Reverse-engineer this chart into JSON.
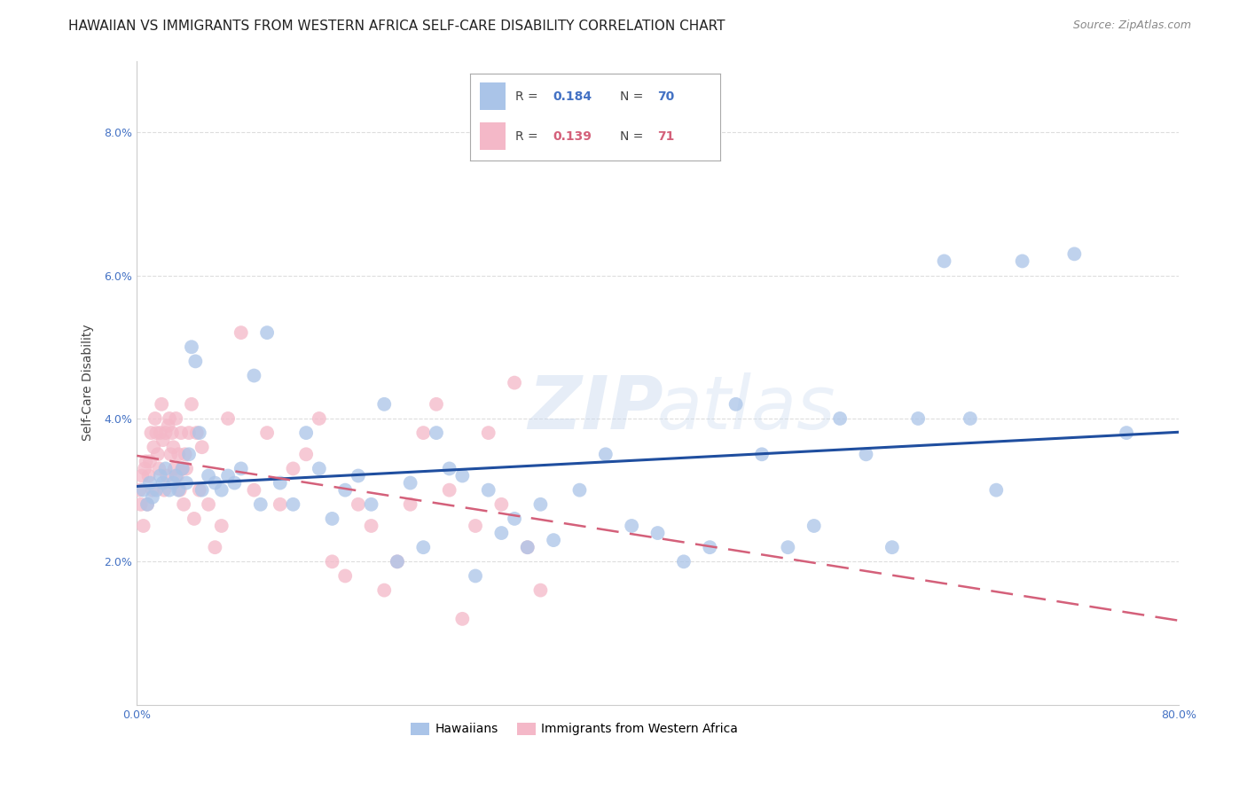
{
  "title": "HAWAIIAN VS IMMIGRANTS FROM WESTERN AFRICA SELF-CARE DISABILITY CORRELATION CHART",
  "source": "Source: ZipAtlas.com",
  "ylabel": "Self-Care Disability",
  "x_min": 0.0,
  "x_max": 0.8,
  "y_min": 0.0,
  "y_max": 0.09,
  "x_ticks": [
    0.0,
    0.1,
    0.2,
    0.3,
    0.4,
    0.5,
    0.6,
    0.7,
    0.8
  ],
  "x_tick_labels": [
    "0.0%",
    "",
    "",
    "",
    "",
    "",
    "",
    "",
    "80.0%"
  ],
  "y_ticks": [
    0.02,
    0.04,
    0.06,
    0.08
  ],
  "y_tick_labels": [
    "2.0%",
    "4.0%",
    "6.0%",
    "8.0%"
  ],
  "series1_color": "#aac4e8",
  "series1_edge": "#aac4e8",
  "series1_line_color": "#1f4e9f",
  "series2_color": "#f4b8c8",
  "series2_edge": "#f4b8c8",
  "series2_line_color": "#d4607a",
  "legend_box_color": "#aac4e8",
  "legend_box_color2": "#f4b8c8",
  "legend_r1": "0.184",
  "legend_n1": "70",
  "legend_r2": "0.139",
  "legend_n2": "71",
  "legend_r_color": "#4472c4",
  "legend_n_color": "#4472c4",
  "legend_r_color2": "#d4607a",
  "legend_n_color2": "#d4607a",
  "background_color": "#ffffff",
  "grid_color": "#dddddd",
  "axis_color": "#4472c4",
  "hawaiians_x": [
    0.005,
    0.008,
    0.01,
    0.012,
    0.015,
    0.018,
    0.02,
    0.022,
    0.025,
    0.028,
    0.03,
    0.032,
    0.035,
    0.038,
    0.04,
    0.042,
    0.045,
    0.048,
    0.05,
    0.055,
    0.06,
    0.065,
    0.07,
    0.075,
    0.08,
    0.09,
    0.095,
    0.1,
    0.11,
    0.12,
    0.13,
    0.14,
    0.15,
    0.16,
    0.17,
    0.18,
    0.19,
    0.2,
    0.21,
    0.22,
    0.23,
    0.24,
    0.25,
    0.26,
    0.27,
    0.28,
    0.29,
    0.3,
    0.31,
    0.32,
    0.34,
    0.36,
    0.38,
    0.4,
    0.42,
    0.44,
    0.46,
    0.48,
    0.5,
    0.52,
    0.54,
    0.56,
    0.58,
    0.6,
    0.62,
    0.64,
    0.66,
    0.68,
    0.72,
    0.76
  ],
  "hawaiians_y": [
    0.03,
    0.028,
    0.031,
    0.029,
    0.03,
    0.032,
    0.031,
    0.033,
    0.03,
    0.031,
    0.032,
    0.03,
    0.033,
    0.031,
    0.035,
    0.05,
    0.048,
    0.038,
    0.03,
    0.032,
    0.031,
    0.03,
    0.032,
    0.031,
    0.033,
    0.046,
    0.028,
    0.052,
    0.031,
    0.028,
    0.038,
    0.033,
    0.026,
    0.03,
    0.032,
    0.028,
    0.042,
    0.02,
    0.031,
    0.022,
    0.038,
    0.033,
    0.032,
    0.018,
    0.03,
    0.024,
    0.026,
    0.022,
    0.028,
    0.023,
    0.03,
    0.035,
    0.025,
    0.024,
    0.02,
    0.022,
    0.042,
    0.035,
    0.022,
    0.025,
    0.04,
    0.035,
    0.022,
    0.04,
    0.062,
    0.04,
    0.03,
    0.062,
    0.063,
    0.038
  ],
  "western_africa_x": [
    0.002,
    0.003,
    0.004,
    0.005,
    0.006,
    0.007,
    0.008,
    0.009,
    0.01,
    0.011,
    0.012,
    0.013,
    0.014,
    0.015,
    0.016,
    0.017,
    0.018,
    0.019,
    0.02,
    0.021,
    0.022,
    0.023,
    0.024,
    0.025,
    0.026,
    0.027,
    0.028,
    0.029,
    0.03,
    0.031,
    0.032,
    0.033,
    0.034,
    0.035,
    0.036,
    0.037,
    0.038,
    0.04,
    0.042,
    0.044,
    0.046,
    0.048,
    0.05,
    0.055,
    0.06,
    0.065,
    0.07,
    0.08,
    0.09,
    0.1,
    0.11,
    0.12,
    0.13,
    0.14,
    0.15,
    0.16,
    0.17,
    0.18,
    0.19,
    0.2,
    0.21,
    0.22,
    0.23,
    0.24,
    0.25,
    0.26,
    0.27,
    0.28,
    0.29,
    0.3,
    0.31
  ],
  "western_africa_y": [
    0.03,
    0.028,
    0.032,
    0.025,
    0.033,
    0.034,
    0.028,
    0.032,
    0.034,
    0.038,
    0.03,
    0.036,
    0.04,
    0.038,
    0.035,
    0.033,
    0.038,
    0.042,
    0.037,
    0.03,
    0.038,
    0.032,
    0.039,
    0.04,
    0.035,
    0.038,
    0.036,
    0.033,
    0.04,
    0.032,
    0.035,
    0.03,
    0.038,
    0.033,
    0.028,
    0.035,
    0.033,
    0.038,
    0.042,
    0.026,
    0.038,
    0.03,
    0.036,
    0.028,
    0.022,
    0.025,
    0.04,
    0.052,
    0.03,
    0.038,
    0.028,
    0.033,
    0.035,
    0.04,
    0.02,
    0.018,
    0.028,
    0.025,
    0.016,
    0.02,
    0.028,
    0.038,
    0.042,
    0.03,
    0.012,
    0.025,
    0.038,
    0.028,
    0.045,
    0.022,
    0.016
  ]
}
